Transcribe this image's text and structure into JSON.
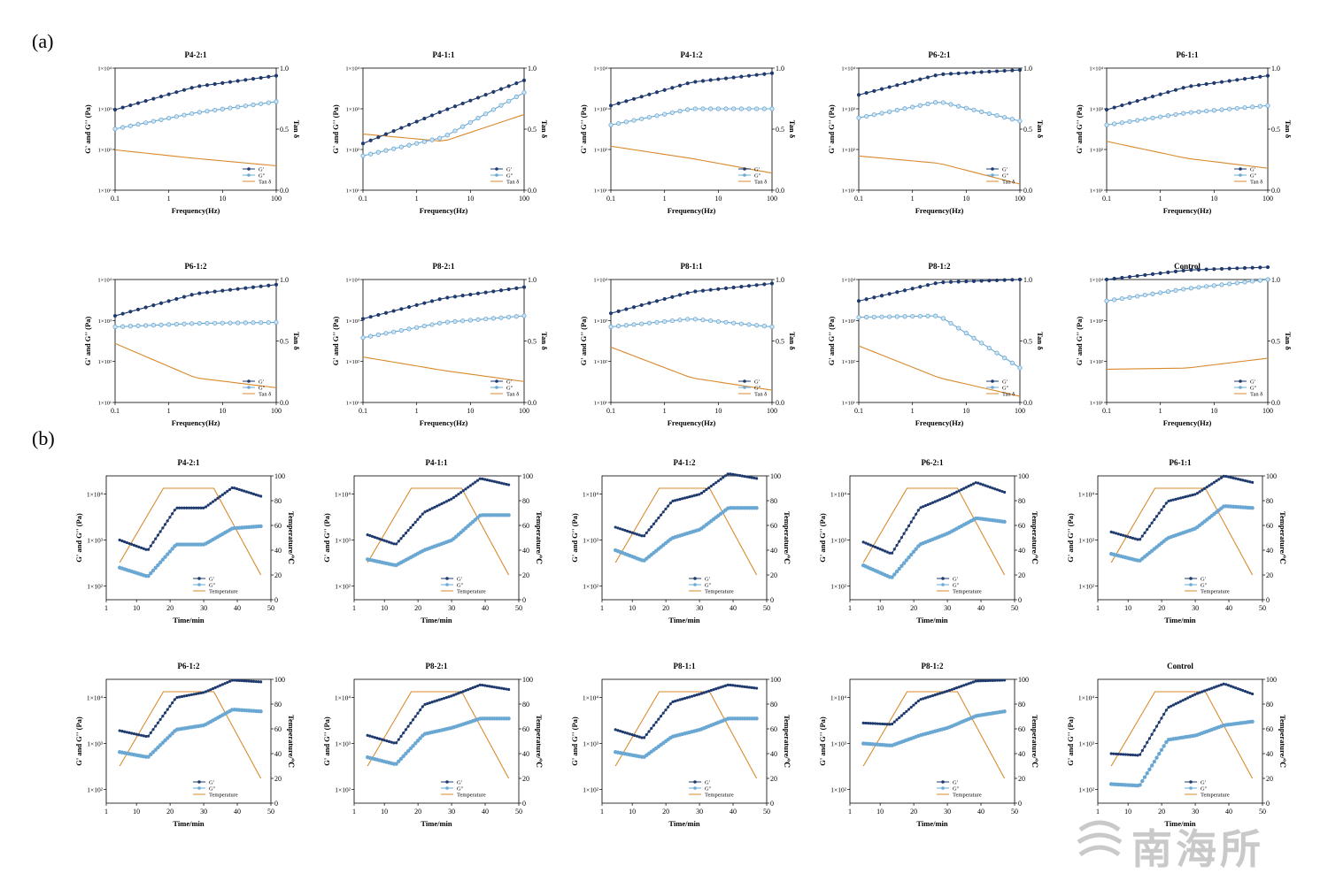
{
  "panel_labels": {
    "a": "(a)",
    "b": "(b)"
  },
  "watermark": {
    "text": "南海所"
  },
  "colors": {
    "g_prime": "#1f3a6e",
    "g_double_prime": "#6aa8d3",
    "tan_temp": "#d9892c"
  },
  "chart_data": [
    {
      "type": "line",
      "group": "a",
      "xlabel": "Frequency(Hz)",
      "ylabel": "G' and G'' (Pa)",
      "y2label": "Tan δ",
      "x_scale": "log",
      "xlim": [
        0.1,
        100
      ],
      "xticks": [
        "0.1",
        "1",
        "10",
        "100"
      ],
      "y_scale": "log",
      "ylim": [
        10,
        10000
      ],
      "yticks": [
        "1×10¹",
        "1×10²",
        "1×10³",
        "1×10⁴"
      ],
      "y2lim": [
        0,
        1
      ],
      "y2ticks": [
        "0.0",
        "0.5",
        "1.0"
      ],
      "legend": [
        "G'",
        "G''",
        "Tan δ"
      ],
      "panels": [
        {
          "title": "P4-2:1",
          "g1": [
            950,
            3500,
            6500
          ],
          "g2": [
            320,
            800,
            1500
          ],
          "tan": [
            0.33,
            0.26,
            0.2
          ]
        },
        {
          "title": "P4-1:1",
          "g1": [
            140,
            900,
            5000
          ],
          "g2": [
            70,
            200,
            2500
          ],
          "tan": [
            0.46,
            0.4,
            0.62
          ]
        },
        {
          "title": "P4-1:2",
          "g1": [
            1200,
            4500,
            7500
          ],
          "g2": [
            400,
            1000,
            1000
          ],
          "tan": [
            0.36,
            0.26,
            0.14
          ]
        },
        {
          "title": "P6-2:1",
          "g1": [
            2200,
            7000,
            9000
          ],
          "g2": [
            600,
            1500,
            500
          ],
          "tan": [
            0.28,
            0.22,
            0.05
          ]
        },
        {
          "title": "P6-1:1",
          "g1": [
            950,
            3500,
            6500
          ],
          "g2": [
            400,
            800,
            1200
          ],
          "tan": [
            0.4,
            0.26,
            0.18
          ]
        },
        {
          "title": "P6-1:2",
          "g1": [
            1300,
            4500,
            7500
          ],
          "g2": [
            700,
            850,
            900
          ],
          "tan": [
            0.48,
            0.2,
            0.12
          ]
        },
        {
          "title": "P8-2:1",
          "g1": [
            1100,
            3500,
            6500
          ],
          "g2": [
            380,
            900,
            1300
          ],
          "tan": [
            0.37,
            0.26,
            0.17
          ]
        },
        {
          "title": "P8-1:1",
          "g1": [
            1500,
            5000,
            8000
          ],
          "g2": [
            700,
            1100,
            700
          ],
          "tan": [
            0.45,
            0.2,
            0.1
          ]
        },
        {
          "title": "P8-1:2",
          "g1": [
            3000,
            8500,
            10000
          ],
          "g2": [
            1200,
            1300,
            70
          ],
          "tan": [
            0.46,
            0.2,
            0.05
          ]
        },
        {
          "title": "Control",
          "g1": [
            10000,
            17000,
            20000
          ],
          "g2": [
            3000,
            6000,
            10000
          ],
          "tan": [
            0.27,
            0.28,
            0.36
          ]
        }
      ]
    },
    {
      "type": "line",
      "group": "b",
      "xlabel": "Time/min",
      "ylabel": "G' and G'' (Pa)",
      "y2label": "Temperature/℃",
      "xlim": [
        1,
        50
      ],
      "xticks": [
        "1",
        "10",
        "20",
        "30",
        "40",
        "50"
      ],
      "y_scale": "log",
      "ylim": [
        50,
        25000
      ],
      "yticks": [
        "1×10²",
        "1×10³",
        "1×10⁴"
      ],
      "y2lim": [
        0,
        100
      ],
      "y2ticks": [
        "0",
        "20",
        "40",
        "60",
        "80",
        "100"
      ],
      "legend": [
        "G'",
        "G''",
        "Temperature"
      ],
      "temperature": {
        "t": [
          5,
          18,
          33,
          47
        ],
        "value": [
          30,
          90,
          90,
          20
        ]
      },
      "panels": [
        {
          "title": "P4-2:1",
          "g1": [
            1000,
            600,
            5000,
            5000,
            14000,
            9000
          ],
          "g2": [
            250,
            160,
            800,
            800,
            1800,
            2000
          ]
        },
        {
          "title": "P4-1:1",
          "g1": [
            1300,
            800,
            4000,
            8000,
            22000,
            16000
          ],
          "g2": [
            380,
            280,
            600,
            1000,
            3500,
            3500
          ]
        },
        {
          "title": "P4-1:2",
          "g1": [
            1900,
            1200,
            7000,
            10000,
            28000,
            22000
          ],
          "g2": [
            600,
            350,
            1100,
            1700,
            5000,
            5000
          ]
        },
        {
          "title": "P6-2:1",
          "g1": [
            900,
            500,
            5000,
            9000,
            18000,
            11000
          ],
          "g2": [
            280,
            150,
            800,
            1400,
            3000,
            2500
          ]
        },
        {
          "title": "P6-1:1",
          "g1": [
            1500,
            1000,
            7000,
            10000,
            25000,
            18000
          ],
          "g2": [
            500,
            350,
            1100,
            1800,
            5500,
            5000
          ]
        },
        {
          "title": "P6-1:2",
          "g1": [
            1900,
            1400,
            10000,
            13000,
            24000,
            22000
          ],
          "g2": [
            650,
            500,
            2000,
            2500,
            5500,
            5000
          ]
        },
        {
          "title": "P8-2:1",
          "g1": [
            1500,
            1000,
            7000,
            11000,
            19000,
            15000
          ],
          "g2": [
            500,
            350,
            1600,
            2200,
            3500,
            3500
          ]
        },
        {
          "title": "P8-1:1",
          "g1": [
            2000,
            1300,
            8000,
            12000,
            19000,
            16000
          ],
          "g2": [
            650,
            500,
            1400,
            2000,
            3500,
            3500
          ]
        },
        {
          "title": "P8-1:2",
          "g1": [
            2800,
            2600,
            9000,
            14000,
            23000,
            24000
          ],
          "g2": [
            1000,
            900,
            1500,
            2200,
            4000,
            5000
          ]
        },
        {
          "title": "Control",
          "g1": [
            600,
            550,
            6000,
            12000,
            20000,
            12000
          ],
          "g2": [
            130,
            120,
            1200,
            1500,
            2500,
            3000
          ]
        }
      ]
    }
  ]
}
